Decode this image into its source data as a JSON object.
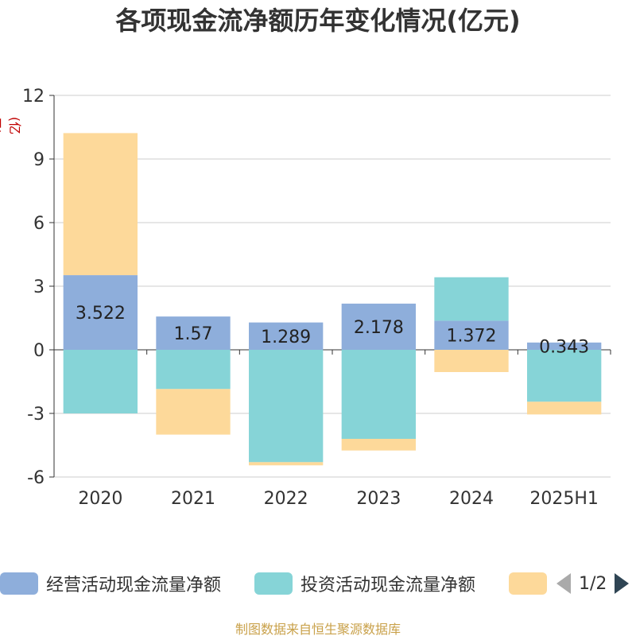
{
  "title": "各项现金流净额历年变化情况(亿元)",
  "y_unit": "(亿元)",
  "source": "制图数据来自恒生聚源数据库",
  "pager": {
    "text": "1/2"
  },
  "colors": {
    "operating": "#8eaedb",
    "investing": "#86d4d7",
    "financing": "#fdd99a",
    "axis": "#333333",
    "grid": "#cccccc",
    "tick_text": "#333333"
  },
  "chart_data": {
    "type": "bar",
    "stacked": true,
    "categories": [
      "2020",
      "2021",
      "2022",
      "2023",
      "2024",
      "2025H1"
    ],
    "ylim": [
      -6,
      12
    ],
    "yticks": [
      -6,
      -3,
      0,
      3,
      6,
      9,
      12
    ],
    "grid": true,
    "legend_position": "bottom",
    "series": [
      {
        "key": "operating",
        "name": "经营活动现金流量净额",
        "values": [
          3.522,
          1.57,
          1.289,
          2.178,
          1.372,
          0.343
        ],
        "show_labels": true
      },
      {
        "key": "investing",
        "name": "投资活动现金流量净额",
        "values": [
          -3.0,
          -1.85,
          -5.3,
          -4.2,
          2.05,
          -2.45
        ],
        "show_labels": false
      },
      {
        "key": "financing",
        "name": "",
        "values": [
          6.7,
          -2.15,
          -0.15,
          -0.55,
          -1.05,
          -0.6
        ],
        "show_labels": false
      }
    ],
    "data_labels": [
      "3.522",
      "1.57",
      "1.289",
      "2.178",
      "1.372",
      "0.343"
    ]
  }
}
